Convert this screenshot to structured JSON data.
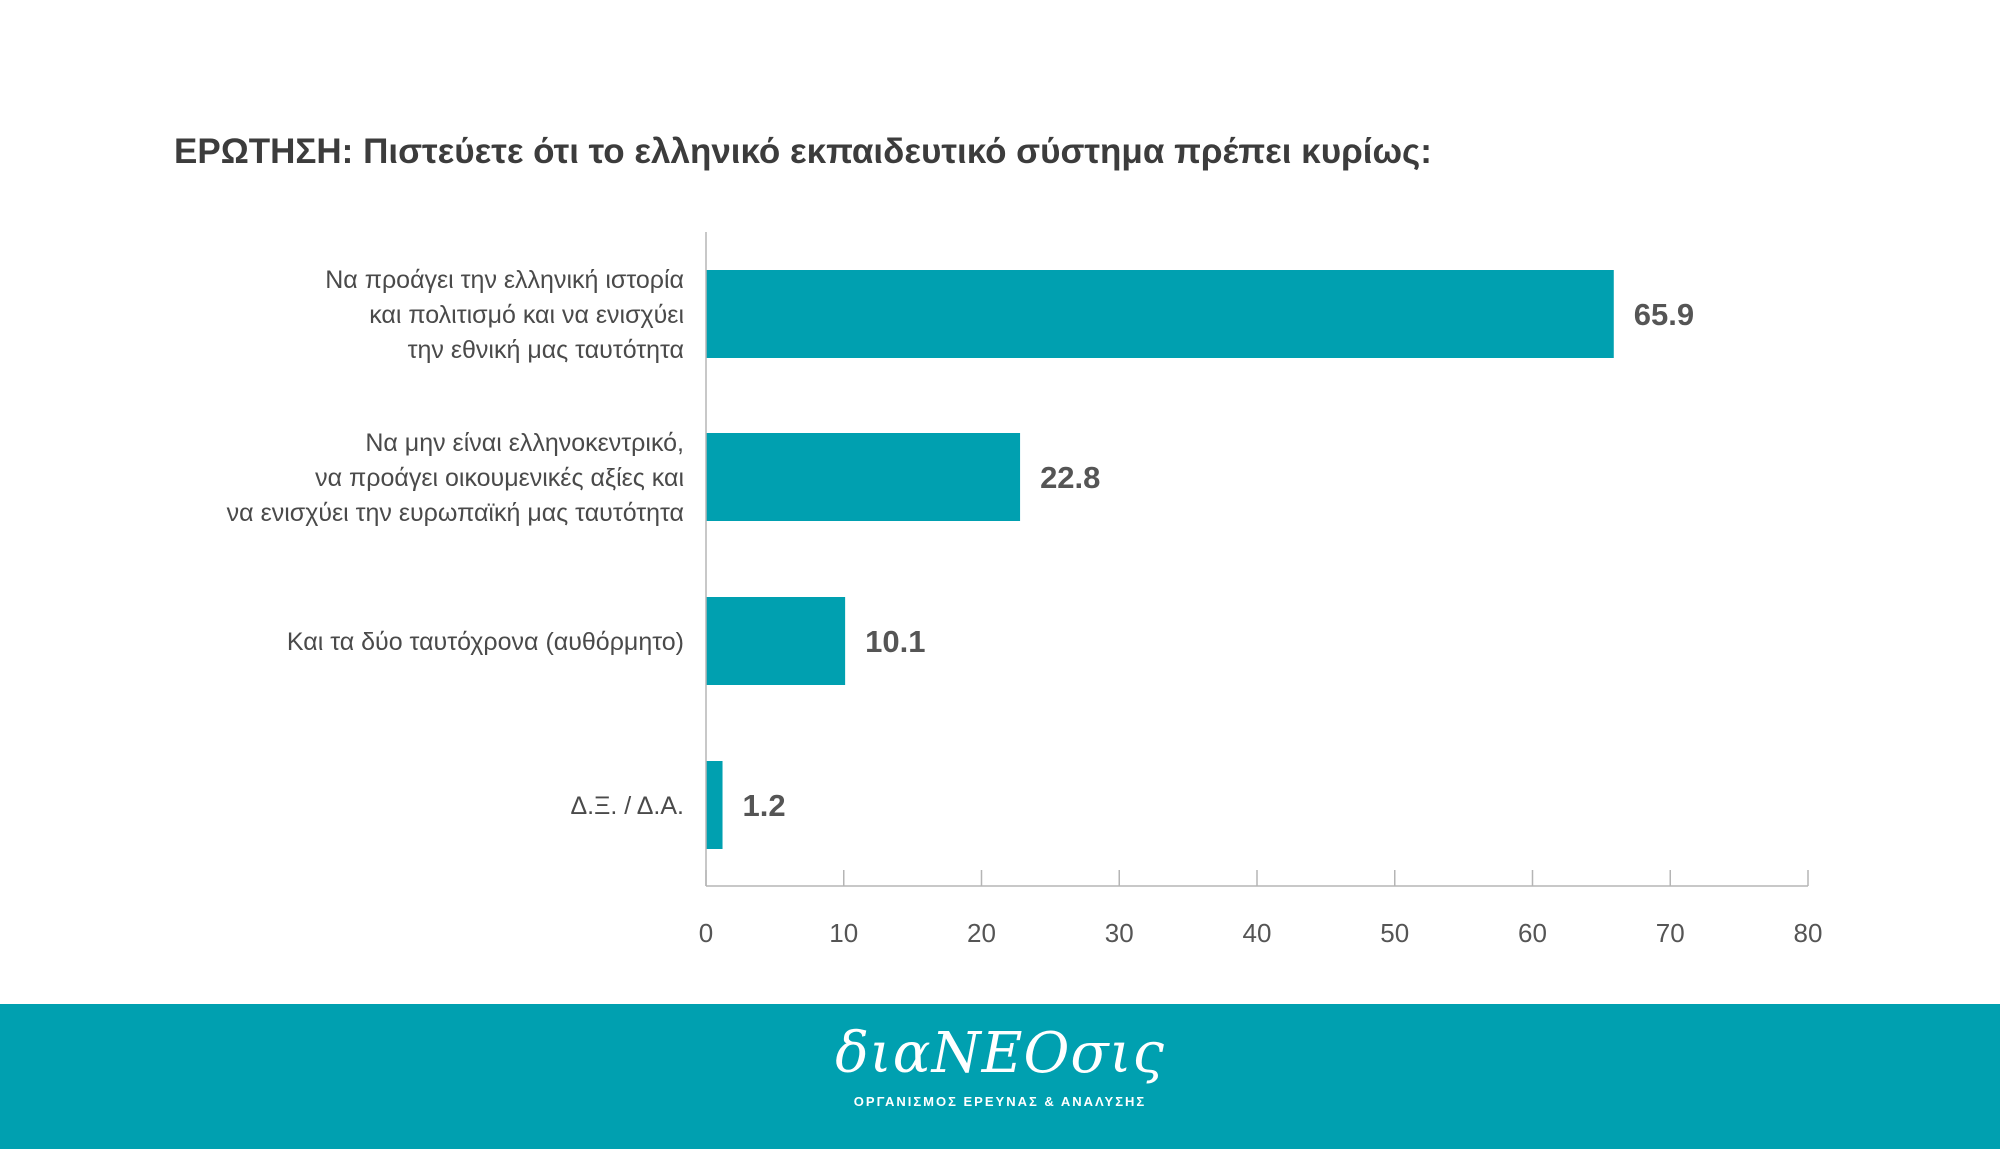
{
  "title": "ΕΡΩΤΗΣΗ: Πιστεύετε ότι το ελληνικό εκπαιδευτικό σύστημα πρέπει κυρίως:",
  "colors": {
    "bar": "#00a0b0",
    "footer": "#00a0b0",
    "axis": "#b5b5b5"
  },
  "chart_data": {
    "type": "bar",
    "orientation": "horizontal",
    "categories": [
      [
        "Να προάγει την ελληνική ιστορία",
        "και πολιτισμό και να ενισχύει",
        "την εθνική μας ταυτότητα"
      ],
      [
        "Να μην είναι ελληνοκεντρικό,",
        "να προάγει οικουμενικές αξίες και",
        "να ενισχύει την ευρωπαϊκή μας ταυτότητα"
      ],
      [
        "Και τα δύο ταυτόχρονα (αυθόρμητο)"
      ],
      [
        "Δ.Ξ. / Δ.Α."
      ]
    ],
    "values": [
      65.9,
      22.8,
      10.1,
      1.2
    ],
    "value_labels": [
      "65.9",
      "22.8",
      "10.1",
      "1.2"
    ],
    "xlim": [
      0,
      80
    ],
    "xticks": [
      0,
      10,
      20,
      30,
      40,
      50,
      60,
      70,
      80
    ],
    "grid": false,
    "legend": "none"
  },
  "footer": {
    "logo": "διαΝΕΟσις",
    "tagline": "ΟΡΓΑΝΙΣΜΟΣ ΕΡΕΥΝΑΣ & ΑΝΑΛΥΣΗΣ"
  }
}
